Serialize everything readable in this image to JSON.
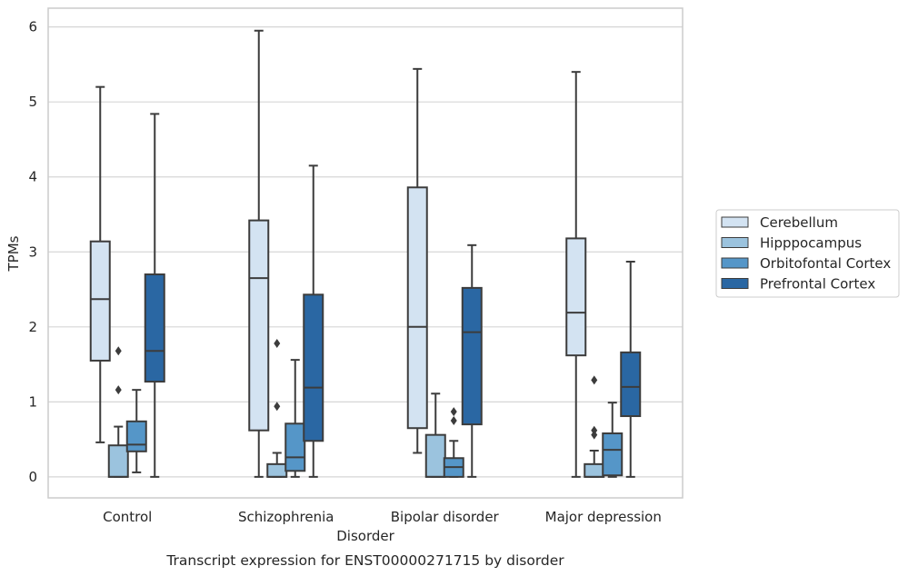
{
  "chart_data": {
    "type": "boxplot",
    "title": "Transcript expression for ENST00000271715 by disorder",
    "xlabel": "Disorder",
    "ylabel": "TPMs",
    "ylim": [
      -0.28,
      6.25
    ],
    "yticks": [
      0,
      1,
      2,
      3,
      4,
      5,
      6
    ],
    "grid": "horizontal",
    "legend_position": "right",
    "categories": [
      "Control",
      "Schizophrenia",
      "Bipolar disorder",
      "Major depression"
    ],
    "series": [
      {
        "name": "Cerebellum",
        "color": "#d3e3f2",
        "boxes": [
          {
            "whislo": 0.46,
            "q1": 1.55,
            "med": 2.37,
            "q3": 3.14,
            "whishi": 5.2,
            "fliers": []
          },
          {
            "whislo": 0.0,
            "q1": 0.62,
            "med": 2.65,
            "q3": 3.42,
            "whishi": 5.95,
            "fliers": []
          },
          {
            "whislo": 0.32,
            "q1": 0.65,
            "med": 2.0,
            "q3": 3.86,
            "whishi": 5.44,
            "fliers": []
          },
          {
            "whislo": 0.0,
            "q1": 1.62,
            "med": 2.19,
            "q3": 3.18,
            "whishi": 5.4,
            "fliers": []
          }
        ]
      },
      {
        "name": "Hipppocampus",
        "color": "#9bc3de",
        "boxes": [
          {
            "whislo": 0.0,
            "q1": 0.0,
            "med": 0.0,
            "q3": 0.42,
            "whishi": 0.67,
            "fliers": [
              1.16,
              1.68
            ]
          },
          {
            "whislo": 0.0,
            "q1": 0.0,
            "med": 0.0,
            "q3": 0.17,
            "whishi": 0.32,
            "fliers": [
              0.94,
              1.78
            ]
          },
          {
            "whislo": 0.0,
            "q1": 0.0,
            "med": 0.0,
            "q3": 0.56,
            "whishi": 1.11,
            "fliers": []
          },
          {
            "whislo": 0.0,
            "q1": 0.0,
            "med": 0.0,
            "q3": 0.17,
            "whishi": 0.35,
            "fliers": [
              0.56,
              0.62,
              1.29
            ]
          }
        ]
      },
      {
        "name": "Orbitofontal Cortex",
        "color": "#5596c8",
        "boxes": [
          {
            "whislo": 0.06,
            "q1": 0.34,
            "med": 0.43,
            "q3": 0.74,
            "whishi": 1.16,
            "fliers": []
          },
          {
            "whislo": 0.0,
            "q1": 0.08,
            "med": 0.26,
            "q3": 0.71,
            "whishi": 1.56,
            "fliers": []
          },
          {
            "whislo": 0.0,
            "q1": 0.0,
            "med": 0.13,
            "q3": 0.25,
            "whishi": 0.48,
            "fliers": [
              0.75,
              0.87
            ]
          },
          {
            "whislo": 0.0,
            "q1": 0.02,
            "med": 0.36,
            "q3": 0.58,
            "whishi": 0.99,
            "fliers": []
          }
        ]
      },
      {
        "name": "Prefrontal Cortex",
        "color": "#2a67a3",
        "boxes": [
          {
            "whislo": 0.0,
            "q1": 1.27,
            "med": 1.68,
            "q3": 2.7,
            "whishi": 4.84,
            "fliers": []
          },
          {
            "whislo": 0.0,
            "q1": 0.48,
            "med": 1.19,
            "q3": 2.43,
            "whishi": 4.15,
            "fliers": []
          },
          {
            "whislo": 0.0,
            "q1": 0.7,
            "med": 1.93,
            "q3": 2.52,
            "whishi": 3.09,
            "fliers": []
          },
          {
            "whislo": 0.0,
            "q1": 0.81,
            "med": 1.2,
            "q3": 1.66,
            "whishi": 2.87,
            "fliers": []
          }
        ]
      }
    ]
  },
  "style": {
    "axes_edge": "#cccccc",
    "grid": "#d6d6d6",
    "box_line": "#3c3c3c"
  }
}
